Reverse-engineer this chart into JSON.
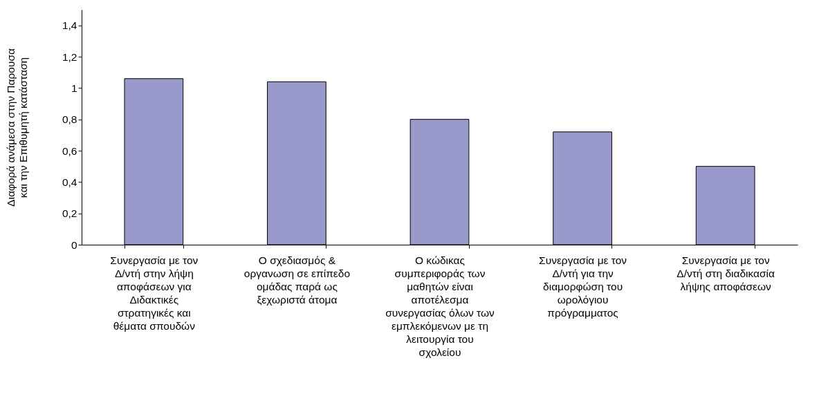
{
  "chart_data": {
    "type": "bar",
    "ylabel": "Διαφορά ανάμεσα στην Παρουσα και την Επιθυμητή κατάσταση",
    "categories": [
      "Συνεργασία με τον Δ/ντή στην λήψη αποφάσεων για Διδακτικές στρατηγικές και θέματα σπουδών",
      "Ο σχεδιασμός & οργανωση σε επίπεδο ομάδας παρά ως ξεχωριστά άτομα",
      "Ο κώδικας συμπεριφοράς των μαθητών είναι αποτέλεσμα συνεργασίας όλων των εμπλεκόμενων με τη λειτουργία του σχολείου",
      "Συνεργασία με τον Δ/ντή για την διαμορφώση του ωρολόγιου πρόγραμματος",
      "Συνεργασία με τον Δ/ντή στη διαδικασία λήψης αποφάσεων"
    ],
    "values": [
      1.06,
      1.04,
      0.8,
      0.72,
      0.5
    ],
    "color": "#9999cc",
    "ylim": [
      0,
      1.5
    ],
    "yticks": [
      0,
      {
        "value": 0.2,
        "label": "0,2"
      },
      {
        "value": 0.4,
        "label": "0,4"
      },
      {
        "value": 0.6,
        "label": "0,6"
      },
      {
        "value": 0.8,
        "label": "0,8"
      },
      1,
      {
        "value": 1.2,
        "label": "1,2"
      },
      {
        "value": 1.4,
        "label": "1,4"
      }
    ],
    "grid": false
  }
}
